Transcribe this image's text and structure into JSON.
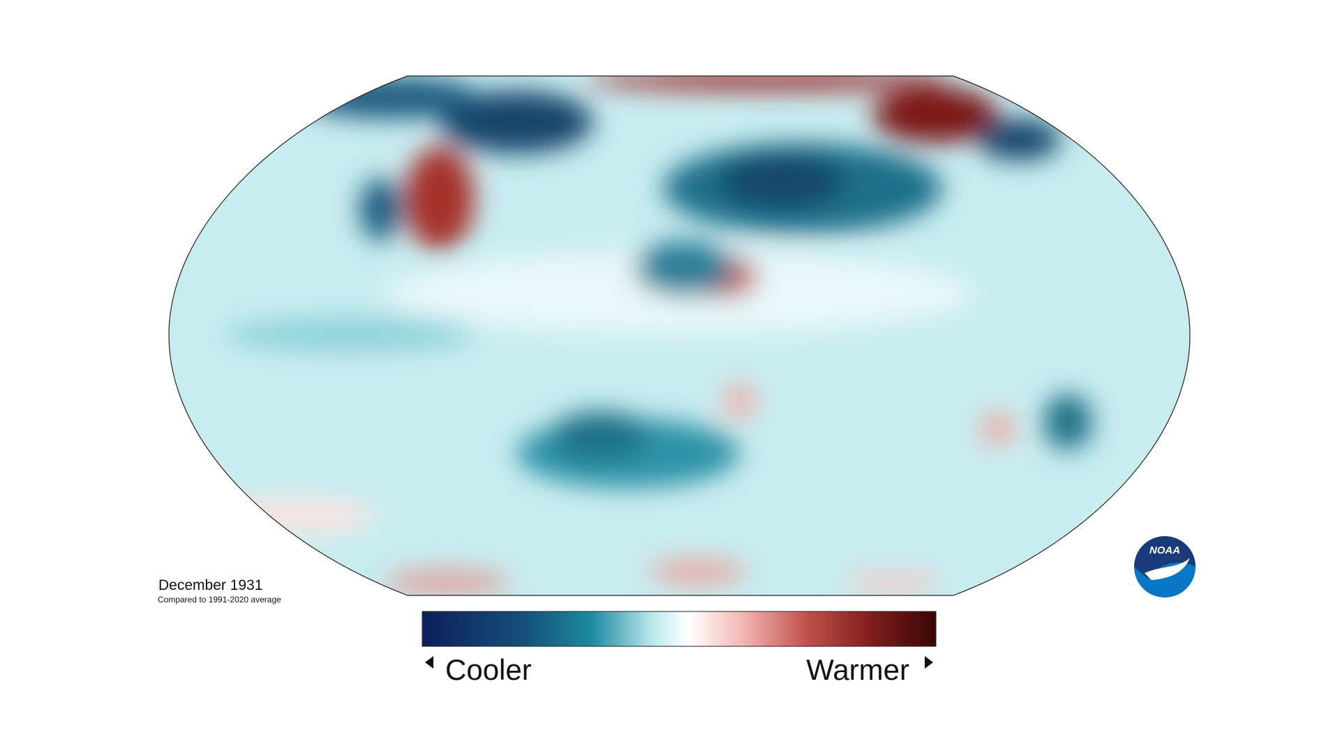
{
  "title": "December 1931",
  "subtitle": "Compared to 1991-2020 average",
  "legend": {
    "low_label": "Cooler",
    "high_label": "Warmer"
  },
  "logo": "NOAA"
}
